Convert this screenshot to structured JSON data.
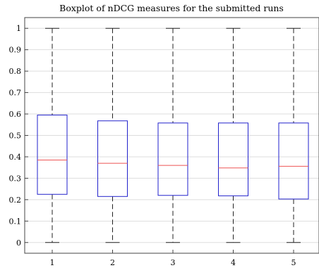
{
  "chart_data": {
    "type": "boxplot",
    "title": "Boxplot of nDCG measures for the submitted runs",
    "xlabel": "",
    "ylabel": "",
    "categories": [
      "1",
      "2",
      "3",
      "4",
      "5"
    ],
    "ylim": [
      -0.05,
      1.05
    ],
    "y_ticks": [
      "0",
      "0.1",
      "0.2",
      "0.3",
      "0.4",
      "0.5",
      "0.6",
      "0.7",
      "0.8",
      "0.9",
      "1"
    ],
    "grid": true,
    "series": [
      {
        "category": "1",
        "min": 0,
        "q1": 0.225,
        "median": 0.385,
        "q3": 0.595,
        "max": 1
      },
      {
        "category": "2",
        "min": 0,
        "q1": 0.215,
        "median": 0.37,
        "q3": 0.568,
        "max": 1
      },
      {
        "category": "3",
        "min": 0,
        "q1": 0.22,
        "median": 0.36,
        "q3": 0.558,
        "max": 1
      },
      {
        "category": "4",
        "min": 0,
        "q1": 0.218,
        "median": 0.348,
        "q3": 0.558,
        "max": 1
      },
      {
        "category": "5",
        "min": 0,
        "q1": 0.203,
        "median": 0.356,
        "q3": 0.558,
        "max": 1
      }
    ],
    "colors": {
      "box": "#2222cc",
      "median": "#ee5555",
      "whisker": "#222222",
      "grid": "#dddddd",
      "axis": "#444444"
    }
  }
}
